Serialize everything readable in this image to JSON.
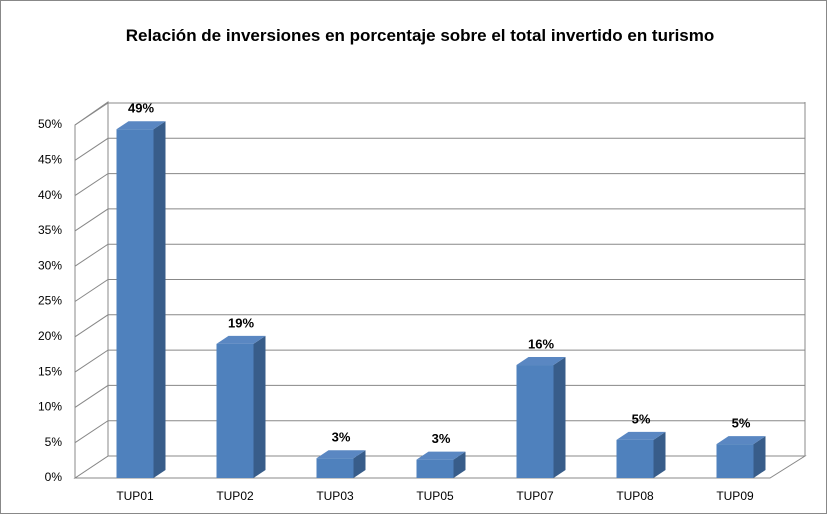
{
  "chart_data": {
    "type": "bar3d",
    "title": "Relación de inversiones en porcentaje sobre el total invertido en turismo",
    "categories": [
      "TUP01",
      "TUP02",
      "TUP03",
      "TUP05",
      "TUP07",
      "TUP08",
      "TUP09"
    ],
    "values": [
      49.4,
      19,
      2.8,
      2.6,
      16,
      5.4,
      4.8
    ],
    "value_labels": [
      "49%",
      "19%",
      "3%",
      "3%",
      "16%",
      "5%",
      "5%"
    ],
    "color": "#4f81bd",
    "ylim": [
      0,
      50
    ],
    "yticks": [
      {
        "value": 0,
        "label": "0%"
      },
      {
        "value": 5,
        "label": "5%"
      },
      {
        "value": 10,
        "label": "10%"
      },
      {
        "value": 15,
        "label": "15%"
      },
      {
        "value": 20,
        "label": "20%"
      },
      {
        "value": 25,
        "label": "25%"
      },
      {
        "value": 30,
        "label": "30%"
      },
      {
        "value": 35,
        "label": "35%"
      },
      {
        "value": 40,
        "label": "40%"
      },
      {
        "value": 45,
        "label": "45%"
      },
      {
        "value": 50,
        "label": "50%"
      }
    ],
    "grid": true
  }
}
